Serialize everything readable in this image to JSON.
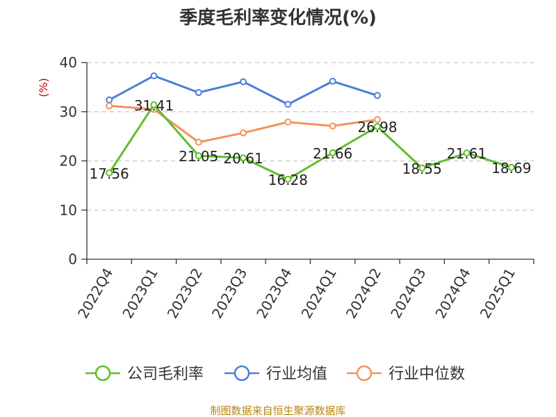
{
  "chart_data": {
    "type": "line",
    "title": "季度毛利率变化情况(%)",
    "unit_label": "(%)",
    "categories": [
      "2022Q4",
      "2023Q1",
      "2023Q2",
      "2023Q3",
      "2023Q4",
      "2024Q1",
      "2024Q2",
      "2024Q3",
      "2024Q4",
      "2025Q1"
    ],
    "ylim": [
      0,
      40
    ],
    "yticks": [
      0,
      10,
      20,
      30,
      40
    ],
    "grid": true,
    "legend_position": "bottom",
    "series": [
      {
        "name": "公司毛利率",
        "color": "#5cbf2a",
        "values": [
          17.56,
          31.41,
          21.05,
          20.61,
          16.28,
          21.66,
          26.98,
          18.55,
          21.61,
          18.69
        ],
        "labels": [
          "17.56",
          "31.41",
          "21.05",
          "20.61",
          "16.28",
          "21.66",
          "26.98",
          "18.55",
          "21.61",
          "18.69"
        ]
      },
      {
        "name": "行业均值",
        "color": "#4a7fd8",
        "values": [
          32.4,
          37.3,
          33.9,
          36.1,
          31.5,
          36.2,
          33.3,
          null,
          null,
          null
        ]
      },
      {
        "name": "行业中位数",
        "color": "#f5925a",
        "values": [
          31.2,
          30.5,
          23.8,
          25.7,
          27.9,
          27.1,
          28.4,
          null,
          null,
          null
        ]
      }
    ]
  },
  "footer": {
    "source": "制图数据来自恒生聚源数据库"
  }
}
